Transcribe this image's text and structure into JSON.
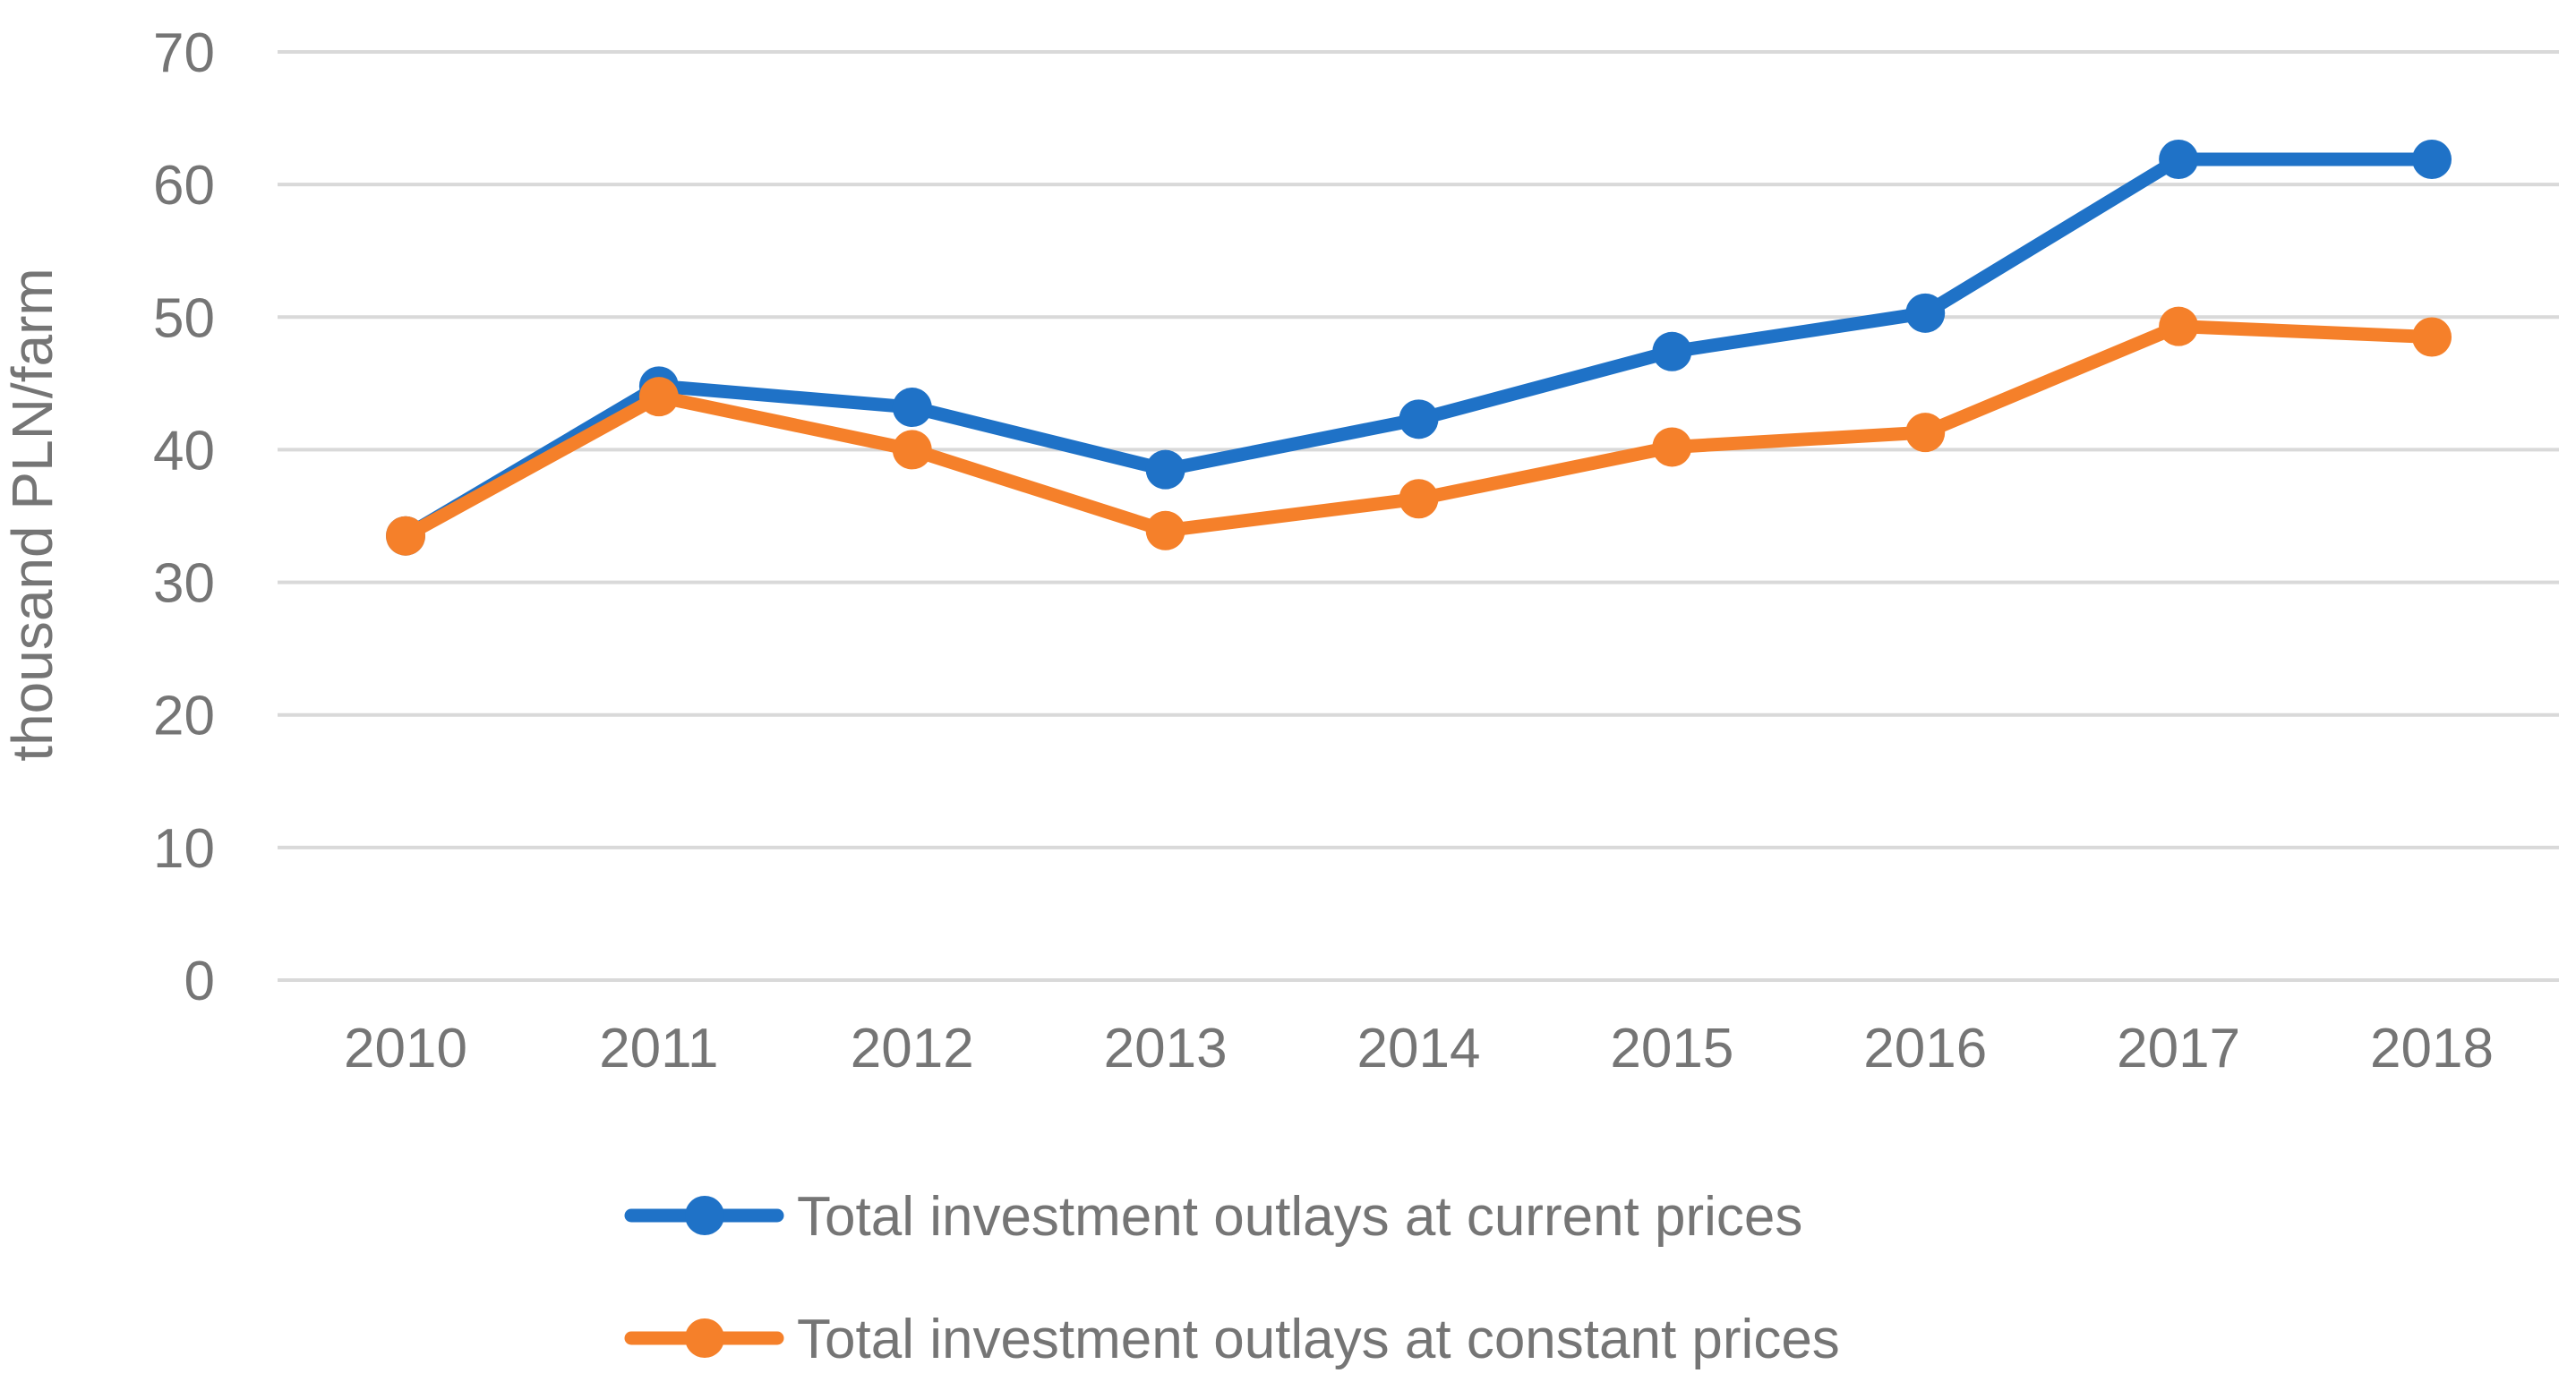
{
  "chart_data": {
    "type": "line",
    "title": "",
    "xlabel": "",
    "ylabel": "thousand PLN/farm",
    "ylim": [
      0,
      70
    ],
    "yticks": [
      0,
      10,
      20,
      30,
      40,
      50,
      60,
      70
    ],
    "grid": true,
    "legend_position": "bottom",
    "categories": [
      "2010",
      "2011",
      "2012",
      "2013",
      "2014",
      "2015",
      "2016",
      "2017",
      "2018"
    ],
    "series": [
      {
        "name": "Total investment outlays at current prices",
        "color": "#1F72C7",
        "values": [
          33.5,
          44.8,
          43.2,
          38.5,
          42.3,
          47.4,
          50.3,
          61.9,
          61.9
        ]
      },
      {
        "name": "Total investment outlays at constant prices",
        "color": "#F5802A",
        "values": [
          33.5,
          44.0,
          40.0,
          33.9,
          36.3,
          40.2,
          41.3,
          49.3,
          48.5
        ]
      }
    ]
  }
}
